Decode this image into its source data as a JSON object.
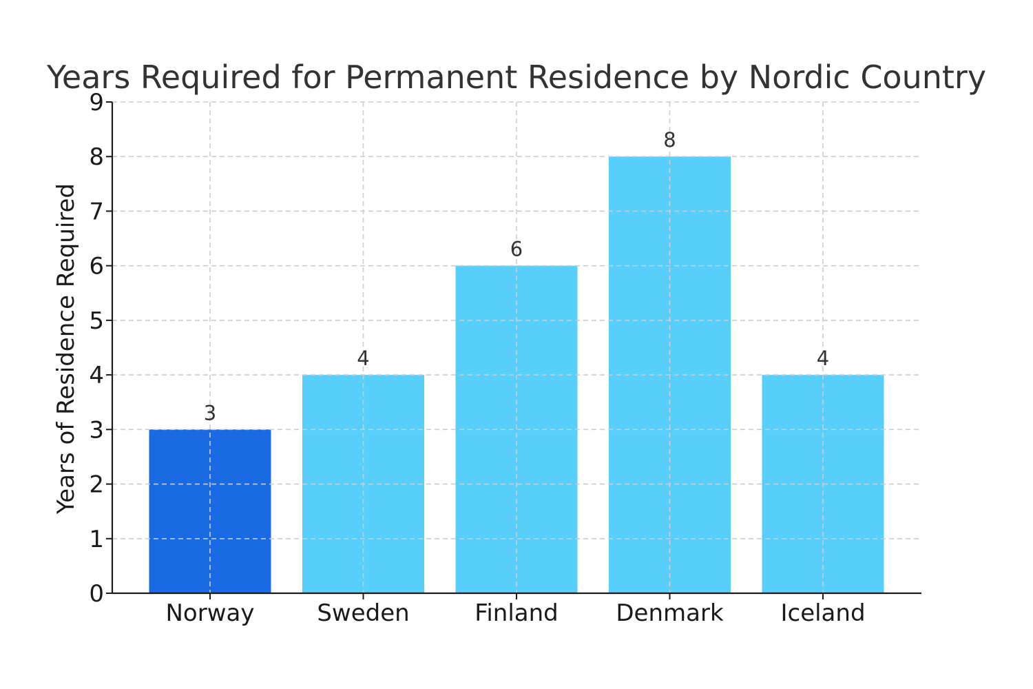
{
  "chart_data": {
    "type": "bar",
    "title": "Years Required for Permanent Residence by Nordic Country",
    "xlabel": "",
    "ylabel": "Years of Residence Required",
    "categories": [
      "Norway",
      "Sweden",
      "Finland",
      "Denmark",
      "Iceland"
    ],
    "values": [
      3,
      4,
      6,
      8,
      4
    ],
    "data_labels": [
      "3",
      "4",
      "6",
      "8",
      "4"
    ],
    "colors": [
      "#1a6ae4",
      "#57cffa",
      "#57cffa",
      "#57cffa",
      "#57cffa"
    ],
    "ylim": [
      0,
      9
    ],
    "yticks": [
      0,
      1,
      2,
      3,
      4,
      5,
      6,
      7,
      8,
      9
    ],
    "grid": true,
    "legend": "none"
  }
}
